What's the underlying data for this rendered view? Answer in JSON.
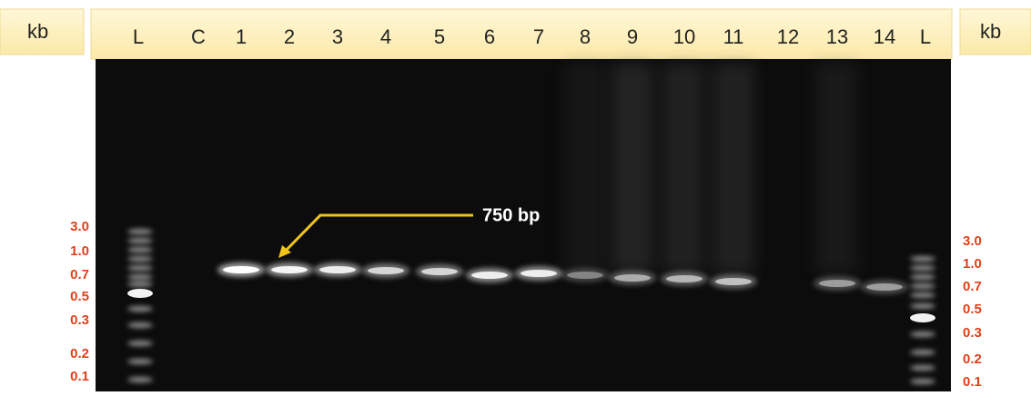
{
  "header": {
    "left_unit": "kb",
    "lanes": [
      "L",
      "C",
      "1",
      "2",
      "3",
      "4",
      "5",
      "6",
      "7",
      "8",
      "9",
      "10",
      "11",
      "12",
      "13",
      "14",
      "L"
    ],
    "right_unit": "kb"
  },
  "left_scale": [
    "3.0",
    "1.0",
    "0.7",
    "0.5",
    "0.3",
    "0.2",
    "0.1"
  ],
  "right_scale": [
    "3.0",
    "1.0",
    "0.7",
    "0.5",
    "0.3",
    "0.2",
    "0.1"
  ],
  "annotation": "750 bp"
}
